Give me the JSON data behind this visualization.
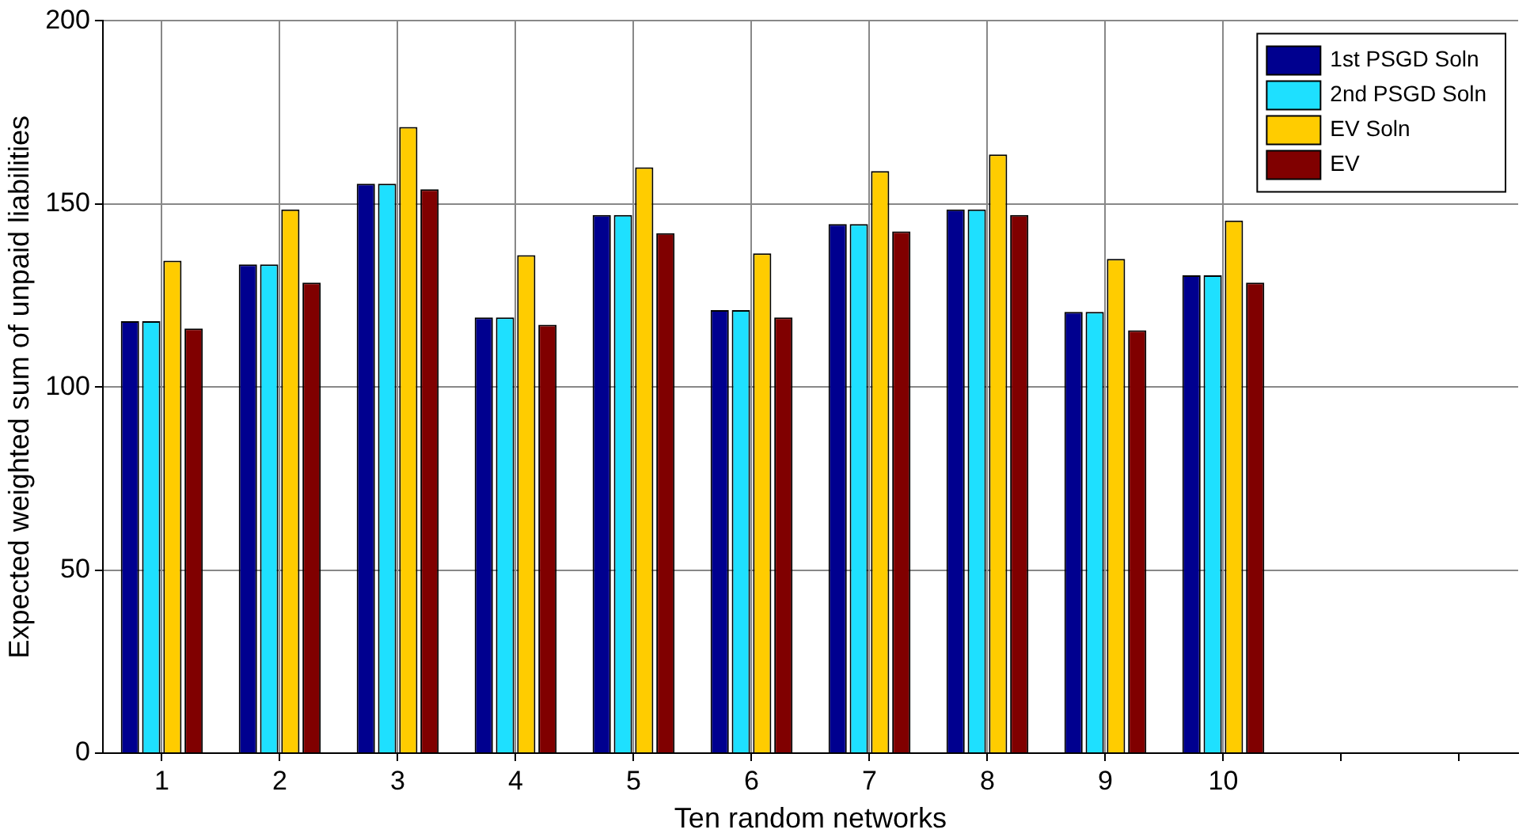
{
  "chart_data": {
    "type": "bar",
    "xlabel": "Ten random networks",
    "ylabel": "Expected weighted sum of unpaid liabilities",
    "categories": [
      "1",
      "2",
      "3",
      "4",
      "5",
      "6",
      "7",
      "8",
      "9",
      "10",
      null,
      null
    ],
    "series": [
      {
        "name": "1st PSGD Soln",
        "color": "#00008f",
        "values": [
          118,
          133.5,
          155.5,
          119,
          147,
          121,
          144.5,
          148.5,
          120.5,
          130.5,
          null,
          null
        ]
      },
      {
        "name": "2nd PSGD Soln",
        "color": "#1ee0ff",
        "values": [
          118,
          133.5,
          155.5,
          119,
          147,
          121,
          144.5,
          148.5,
          120.5,
          130.5,
          null,
          null
        ]
      },
      {
        "name": "EV Soln",
        "color": "#ffcc00",
        "values": [
          134.5,
          148.5,
          171,
          136,
          160,
          136.5,
          159,
          163.5,
          135,
          145.5,
          null,
          null
        ]
      },
      {
        "name": "EV",
        "color": "#800000",
        "values": [
          116,
          128.5,
          154,
          117,
          142,
          119,
          142.5,
          147,
          115.5,
          128.5,
          null,
          null
        ]
      }
    ],
    "ylim": [
      0,
      200
    ],
    "yticks": [
      0,
      50,
      100,
      150,
      200
    ],
    "grid": true,
    "legend": "top right"
  }
}
